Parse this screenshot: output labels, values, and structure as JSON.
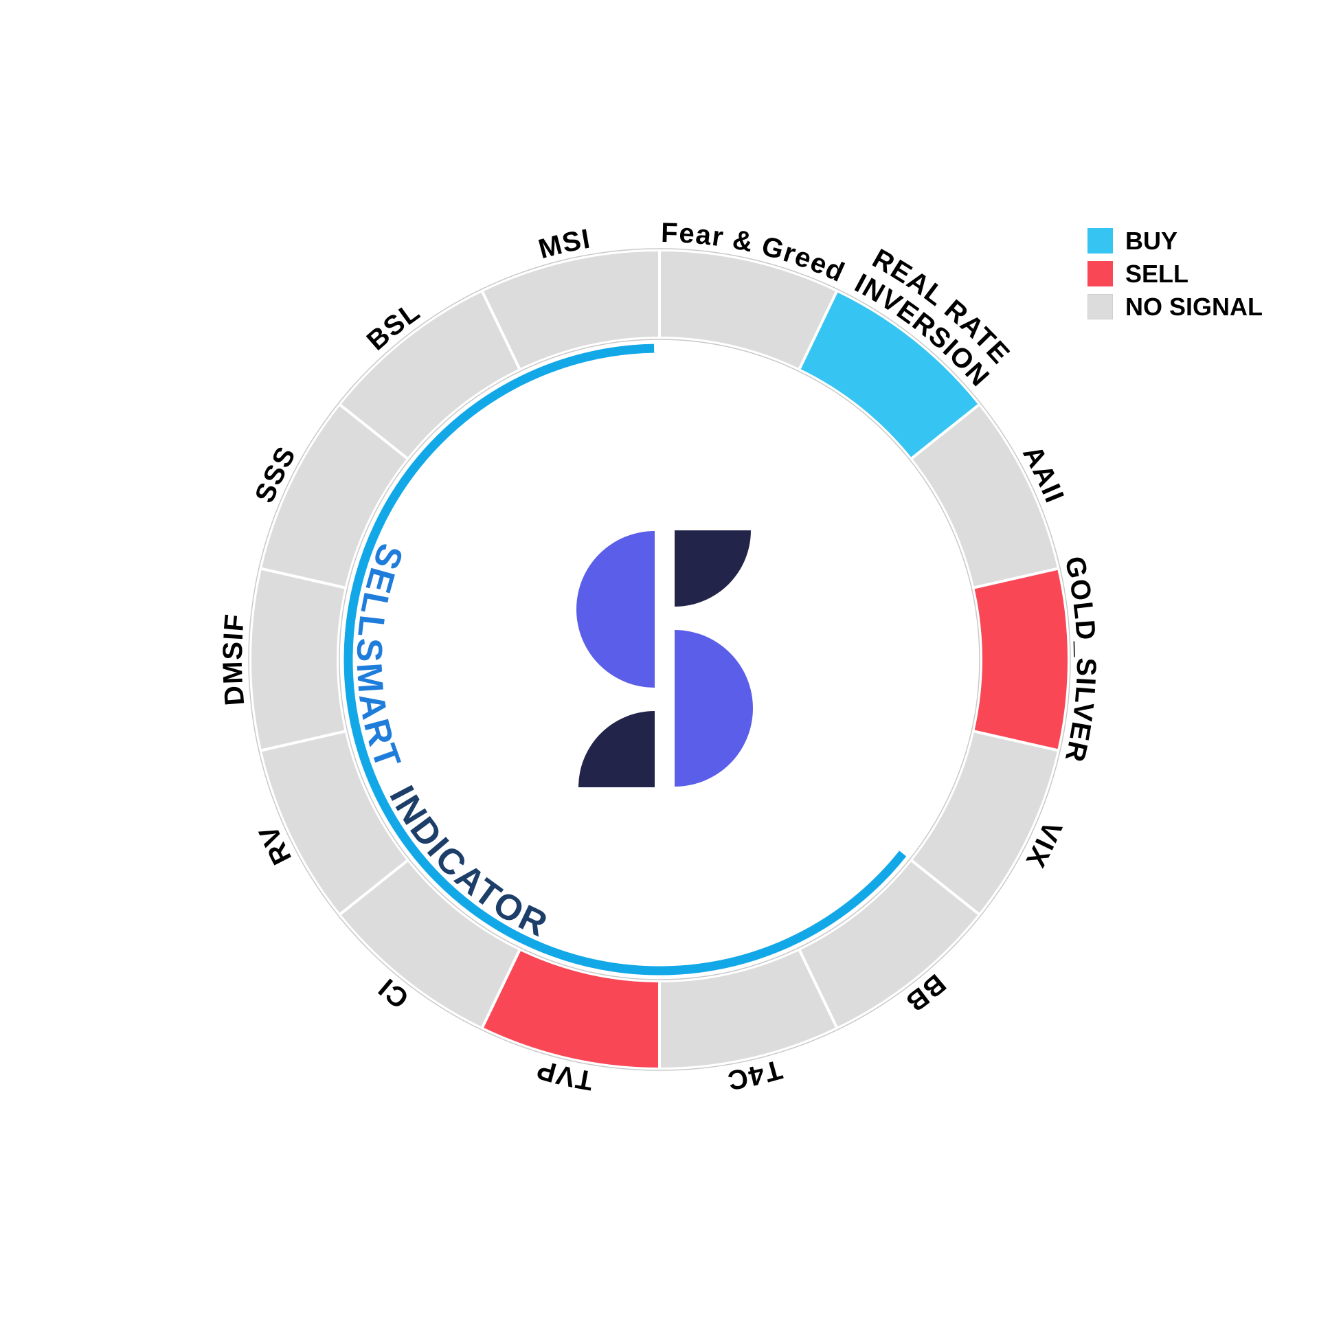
{
  "title": {
    "part1": "SELLSMART",
    "part2": "INDICATOR",
    "part1_color": "#1E7CDB",
    "part2_color": "#1C3E68"
  },
  "legend": {
    "items": [
      {
        "label": "BUY",
        "color": "#36C5F2"
      },
      {
        "label": "SELL",
        "color": "#F94755"
      },
      {
        "label": "NO SIGNAL",
        "color": "#DCDCDC"
      }
    ]
  },
  "chart_data": {
    "type": "donut",
    "title": "SELLSMART INDICATOR",
    "order": "clockwise-from-12-oclock",
    "equal_segment_angle_deg": 25.714,
    "segments": [
      {
        "label": "Fear & Greed",
        "signal": "NO SIGNAL"
      },
      {
        "label": "REAL RATE INVERSION",
        "lines": [
          "REAL RATE",
          "INVERSION"
        ],
        "signal": "BUY"
      },
      {
        "label": "AAII",
        "signal": "NO SIGNAL"
      },
      {
        "label": "GOLD_SILVER",
        "signal": "SELL"
      },
      {
        "label": "VIX",
        "signal": "NO SIGNAL"
      },
      {
        "label": "BB",
        "signal": "NO SIGNAL"
      },
      {
        "label": "T4C",
        "signal": "NO SIGNAL"
      },
      {
        "label": "TVP",
        "signal": "SELL"
      },
      {
        "label": "CI",
        "signal": "NO SIGNAL"
      },
      {
        "label": "RV",
        "signal": "NO SIGNAL"
      },
      {
        "label": "DMSIF",
        "signal": "NO SIGNAL"
      },
      {
        "label": "SSS",
        "signal": "NO SIGNAL"
      },
      {
        "label": "BSL",
        "signal": "NO SIGNAL"
      },
      {
        "label": "MSI",
        "signal": "NO SIGNAL"
      }
    ],
    "signal_colors": {
      "BUY": "#36C5F2",
      "SELL": "#F94755",
      "NO SIGNAL": "#DCDCDC"
    },
    "progress_arc": {
      "start_deg": 128.57,
      "end_deg": 359.0,
      "color": "#12A8E8"
    },
    "hairline_color": "#C9C9C9"
  },
  "logo": {
    "name": "sellsmart-logo",
    "purple": "#5A5EE8",
    "navy": "#232449"
  }
}
